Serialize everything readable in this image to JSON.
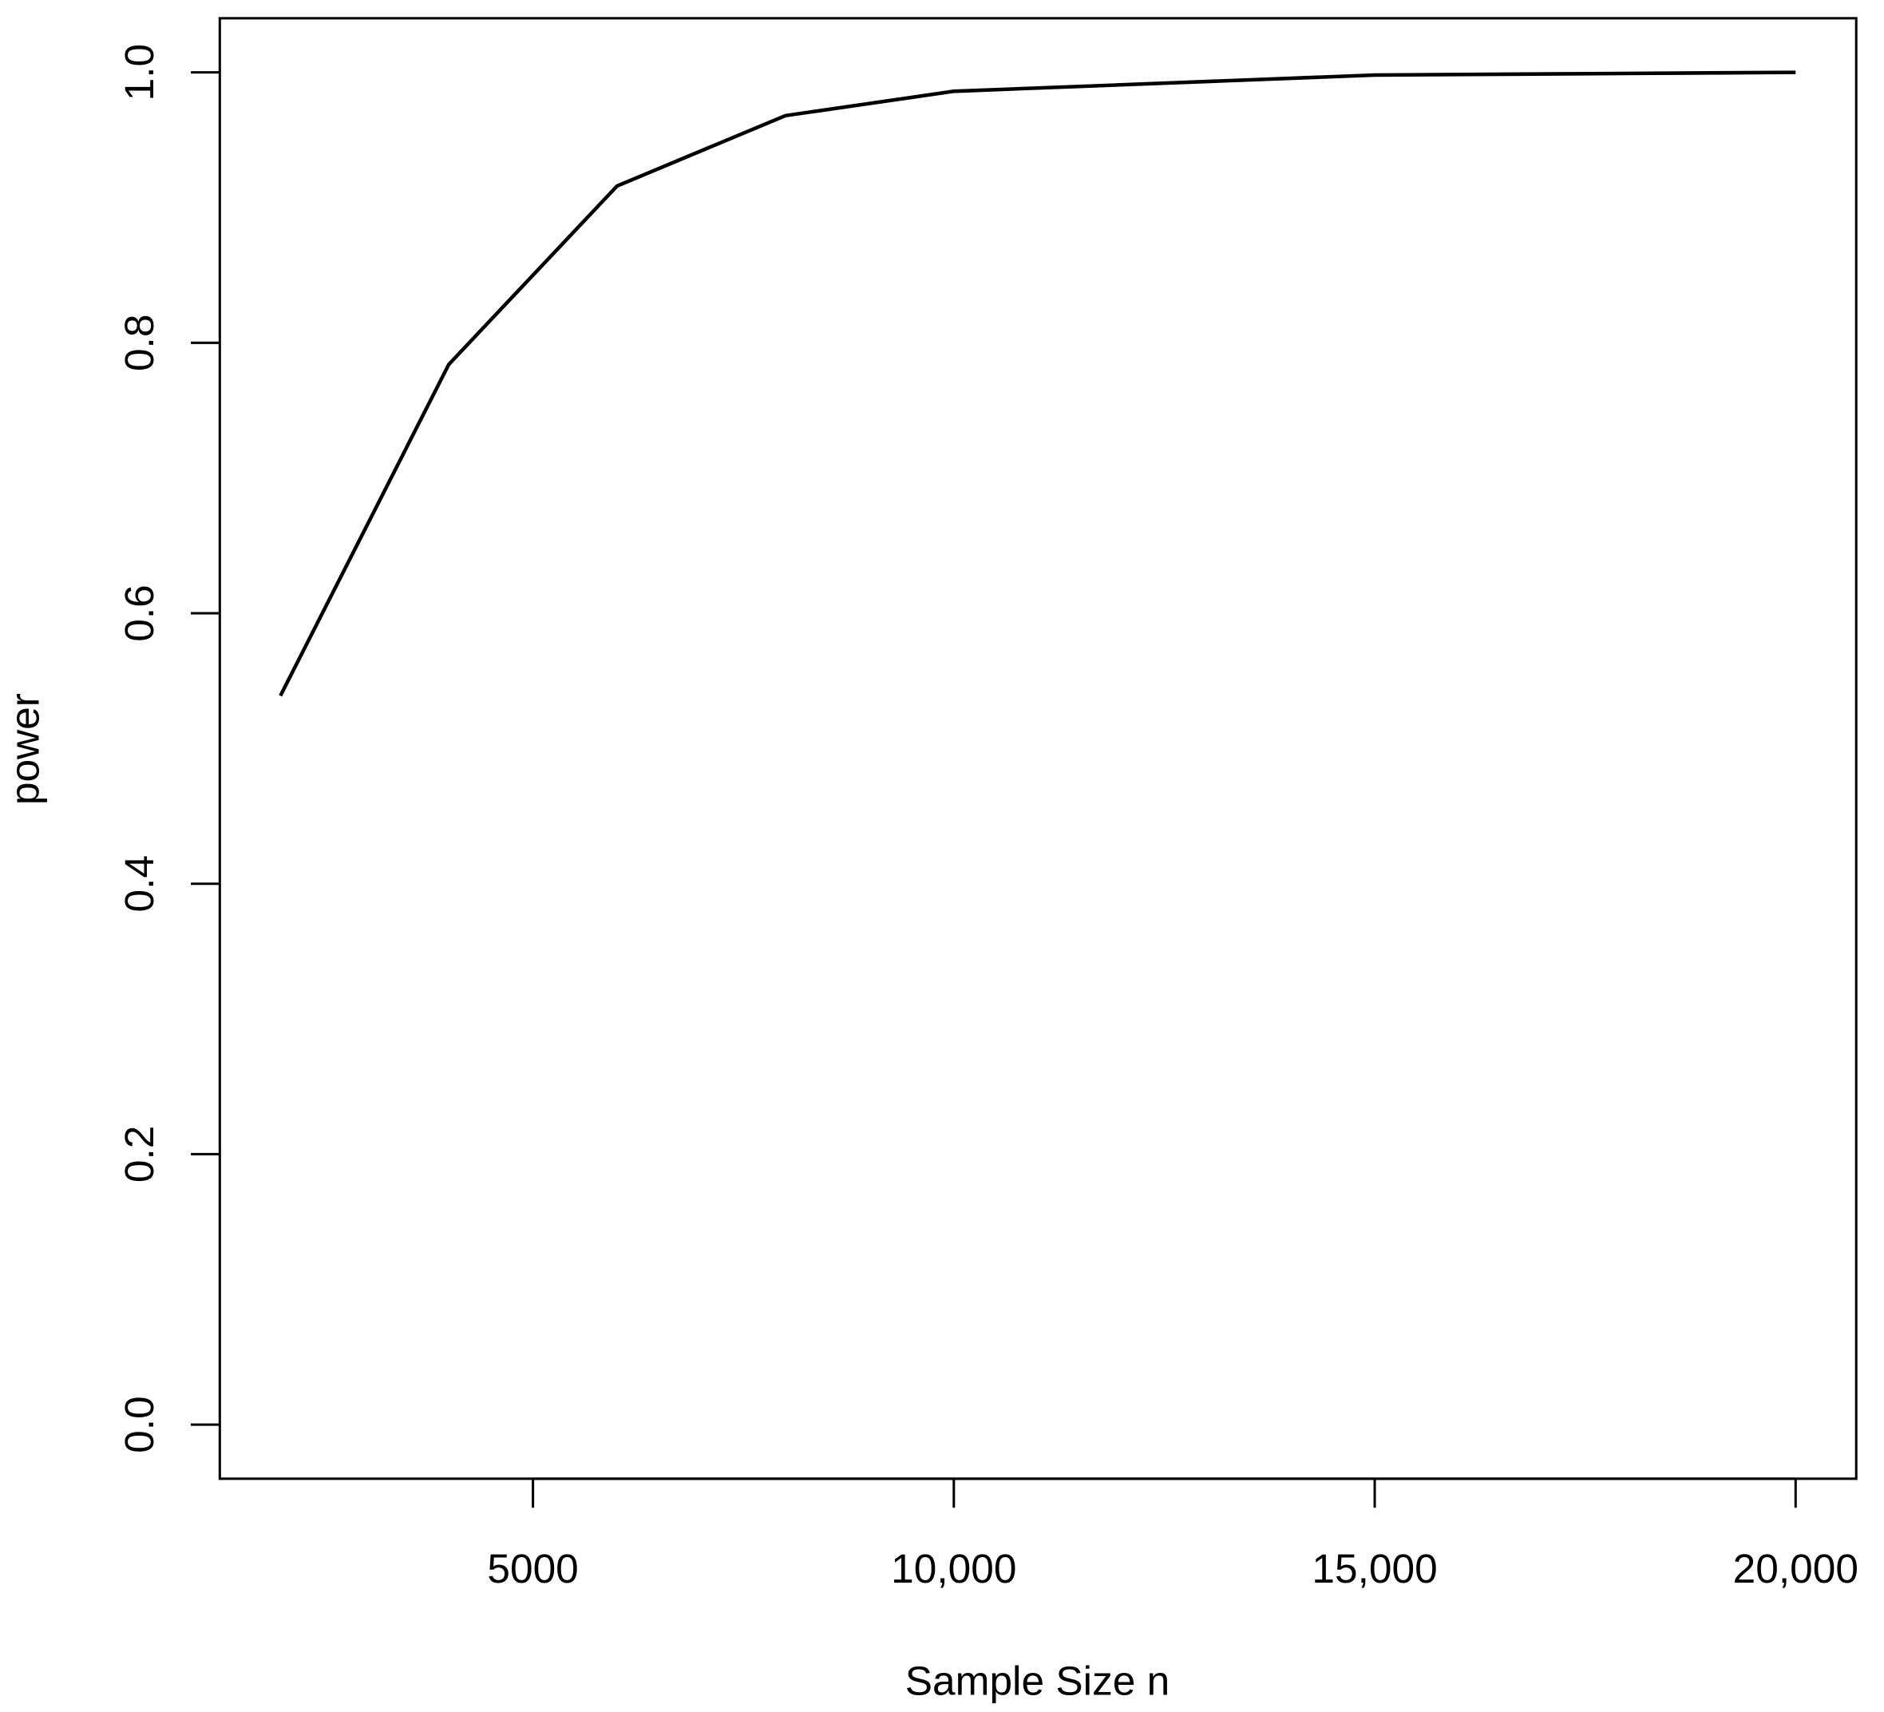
{
  "chart_data": {
    "type": "line",
    "x_label": "Sample Size n",
    "y_label": "power",
    "x": [
      2000,
      4000,
      6000,
      8000,
      10000,
      15000,
      20000
    ],
    "series": [
      {
        "color": "#000000",
        "values": [
          0.539,
          0.784,
          0.916,
          0.968,
          0.986,
          0.998,
          1.0
        ]
      }
    ],
    "xlim": [
      1280,
      20720
    ],
    "xticks": [
      5000,
      {
        "value": 10000,
        "label": "10,000"
      },
      {
        "value": 15000,
        "label": "15,000"
      },
      {
        "value": 20000,
        "label": "20,000"
      }
    ],
    "ylim": [
      -0.04,
      1.04
    ],
    "yticks": [
      {
        "value": 0,
        "label": "0.0"
      },
      {
        "value": 0.2,
        "label": "0.2"
      },
      {
        "value": 0.4,
        "label": "0.4"
      },
      {
        "value": 0.6,
        "label": "0.6"
      },
      {
        "value": 0.8,
        "label": "0.8"
      },
      {
        "value": 1,
        "label": "1.0"
      }
    ]
  }
}
